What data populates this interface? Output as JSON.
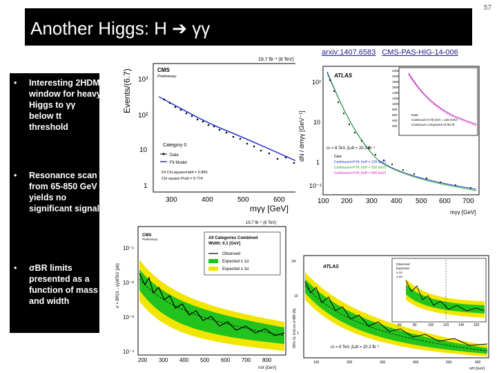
{
  "slide": {
    "number": "57",
    "title": "Another Higgs:  H",
    "title_greek": "γγ",
    "refs": [
      "arxiv:1407.6583",
      "CMS-PAS-HIG-14-006"
    ]
  },
  "bullets": [
    {
      "text": "Interesting 2HDM window for heavy Higgs to γγ below tt threshold"
    },
    {
      "text": "Resonance scan from 65-850 GeV yields no significant signal"
    },
    {
      "text": "σBR limits presented as a function of mass and width"
    }
  ],
  "cms_mass": {
    "lumi": "19.7 fb⁻¹ (8 TeV)",
    "brand": "CMS",
    "preliminary": "Preliminary",
    "ylabel": "Events/(6.7)",
    "xlabel": "mγγ [GeV]",
    "category": "Category 0",
    "legend": [
      "Data",
      "Fit Model"
    ],
    "fit_info": [
      "Fit Chi square/ndof = 0.856",
      "Chi square Prob = 0.774"
    ],
    "xticks": [
      "300",
      "400",
      "500",
      "600"
    ],
    "yticks": [
      "10³",
      "10²",
      "10",
      "1"
    ]
  },
  "atlas_mass": {
    "brand": "ATLAS",
    "ylabel": "dN / dmγγ [GeV⁻¹]",
    "xlabel": "mγγ [GeV]",
    "lumi": "√s = 8 TeV, ∫Ldt = 20.3 fb⁻¹",
    "legend": [
      "Data",
      "Continuum+H fit: (mH = 125 GeV)",
      "Continuum+H fit: (mH = 250 GeV)",
      "Continuum+H fit: (mH = 500 GeV)"
    ],
    "xticks": [
      "100",
      "200",
      "300",
      "400",
      "500",
      "600",
      "700"
    ],
    "yticks": [
      "10²",
      "10",
      "1",
      "10⁻¹"
    ],
    "inset_legend": [
      "Data",
      "Continuum+H fit (mH = 126 GeV)",
      "Continuum component of the fit"
    ],
    "inset_yticks": [
      "2200",
      "2000",
      "1800",
      "1600",
      "1400",
      "1200",
      "1000",
      "800",
      "600",
      "400",
      "200"
    ]
  },
  "cms_limit": {
    "lumi": "19.7 fb⁻¹ (8 TeV)",
    "brand": "CMS",
    "preliminary": "Preliminary",
    "ylabel": "σ × BR(X→γγ)8TeV (pb)",
    "xlabel": "mX [GeV]",
    "box_title": [
      "All Categories Combined",
      "Width: 0.1 [GeV]"
    ],
    "legend": [
      "Observed",
      "Expected ± 1σ",
      "Expected ± 2σ"
    ],
    "xticks": [
      "200",
      "300",
      "400",
      "500",
      "600",
      "700",
      "800"
    ],
    "yticks": [
      "10⁻¹",
      "10⁻²",
      "10⁻³",
      "10⁻⁴"
    ]
  },
  "atlas_limit": {
    "brand": "ATLAS",
    "ylabel": "95% CL limit on σ×BR [fb]",
    "xlabel": "mH [GeV]",
    "lumi": "√s = 8 TeV, ∫Ldt = 20.3 fb⁻¹",
    "xticks": [
      "100",
      "200",
      "300",
      "400",
      "500",
      "600"
    ],
    "yticks": [
      "10²",
      "10",
      "1"
    ],
    "inset_legend": [
      "Observed",
      "Expected",
      "± 1σ",
      "± 2σ"
    ],
    "inset_xticks": [
      "60",
      "80",
      "100",
      "120",
      "140",
      "160"
    ]
  },
  "colors": {
    "title_bg": "#000000",
    "band_1sigma": "#22c31e",
    "band_2sigma": "#f2e600",
    "fit_blue": "#2233cc",
    "fit_magenta": "#c020c0",
    "fit_green": "#22aa22",
    "link": "#1a1a8c"
  }
}
